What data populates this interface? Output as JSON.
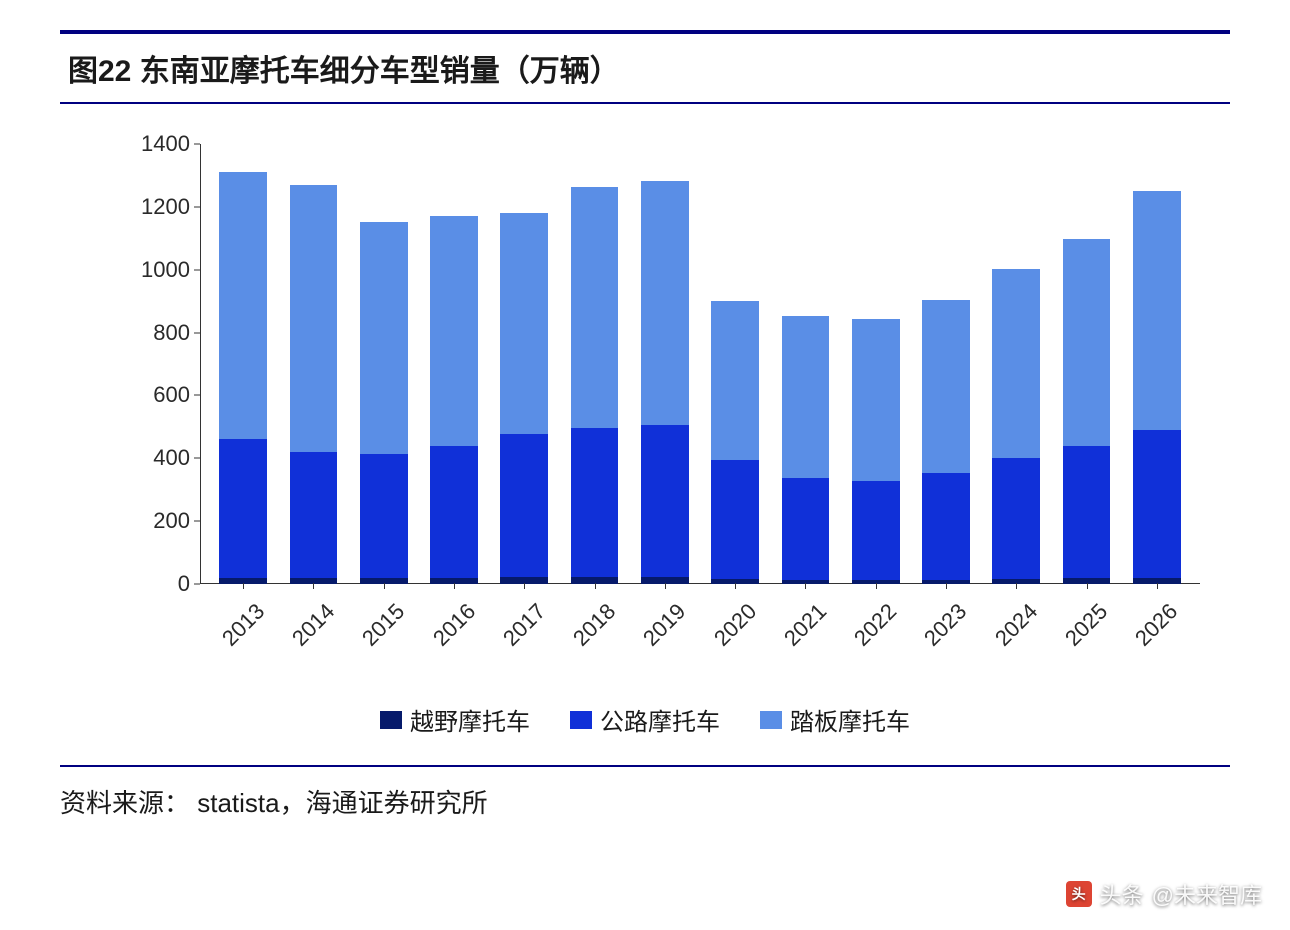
{
  "title": "图22 东南亚摩托车细分车型销量（万辆）",
  "source_label": "资料来源：",
  "source_value": "statista，海通证券研究所",
  "watermark_prefix": "头条",
  "watermark_account": "@未来智库",
  "chart": {
    "type": "bar-stacked",
    "ylim": [
      0,
      1400
    ],
    "ytick_step": 200,
    "yticks": [
      "0",
      "200",
      "400",
      "600",
      "800",
      "1000",
      "1200",
      "1400"
    ],
    "categories": [
      "2013",
      "2014",
      "2015",
      "2016",
      "2017",
      "2018",
      "2019",
      "2020",
      "2021",
      "2022",
      "2023",
      "2024",
      "2025",
      "2026"
    ],
    "series": [
      {
        "name": "越野摩托车",
        "color": "#061a6b",
        "values": [
          20,
          20,
          18,
          20,
          22,
          22,
          22,
          15,
          13,
          12,
          14,
          16,
          18,
          20
        ]
      },
      {
        "name": "公路摩托车",
        "color": "#1030d8",
        "values": [
          440,
          400,
          395,
          420,
          455,
          475,
          485,
          380,
          325,
          315,
          340,
          385,
          420,
          470
        ]
      },
      {
        "name": "踏板摩托车",
        "color": "#5a8ee6",
        "values": [
          850,
          850,
          740,
          730,
          705,
          765,
          775,
          505,
          515,
          515,
          550,
          600,
          660,
          760
        ]
      }
    ],
    "background_color": "#ffffff",
    "axis_color": "#333333",
    "tick_font_size": 22,
    "legend_font_size": 24,
    "bar_width_ratio": 0.68
  }
}
